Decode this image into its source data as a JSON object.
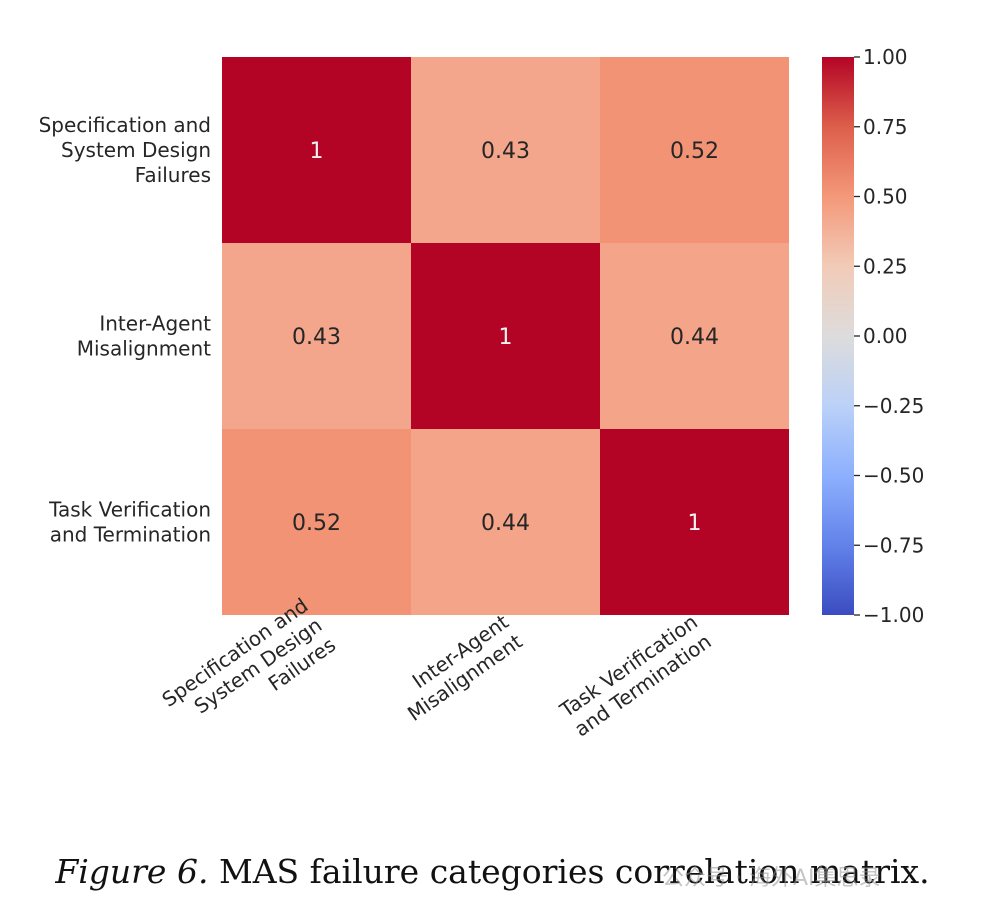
{
  "chart_data": {
    "type": "heatmap",
    "rows": [
      [
        "Specification and",
        "System Design",
        "Failures"
      ],
      [
        "Inter-Agent",
        "Misalignment"
      ],
      [
        "Task Verification",
        "and Termination"
      ]
    ],
    "columns": [
      [
        "Specification and",
        "System Design",
        "Failures"
      ],
      [
        "Inter-Agent",
        "Misalignment"
      ],
      [
        "Task Verification",
        "and Termination"
      ]
    ],
    "values": [
      [
        1,
        0.43,
        0.52
      ],
      [
        0.43,
        1,
        0.44
      ],
      [
        0.52,
        0.44,
        1
      ]
    ],
    "value_labels": [
      [
        "1",
        "0.43",
        "0.52"
      ],
      [
        "0.43",
        "1",
        "0.44"
      ],
      [
        "0.52",
        "0.44",
        "1"
      ]
    ],
    "colormap": "coolwarm",
    "vmin": -1,
    "vmax": 1,
    "colorbar_ticks": [
      1.0,
      0.75,
      0.5,
      0.25,
      0.0,
      -0.25,
      -0.5,
      -0.75,
      -1.0
    ],
    "colorbar_tick_labels": [
      "1.00",
      "0.75",
      "0.50",
      "0.25",
      "0.00",
      "−0.25",
      "−0.50",
      "−0.75",
      "−1.00"
    ],
    "colors": {
      "value_1": "#b40426",
      "value_0.52": "#f29274",
      "value_0.44": "#f6a586",
      "value_0.43": "#f7a688"
    }
  },
  "caption": {
    "figure_number": "Figure 6.",
    "text": "MAS failure categories correlation matrix."
  },
  "watermark": "公众号 · 海外AI集思录"
}
